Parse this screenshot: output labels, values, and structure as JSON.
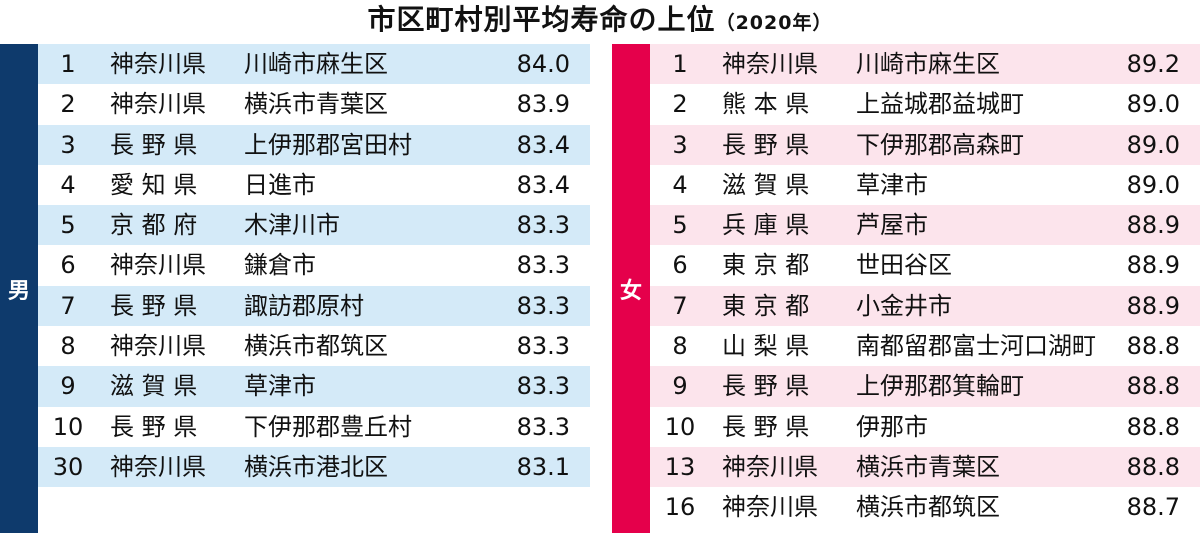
{
  "title": {
    "main": "市区町村別平均寿命の上位",
    "year": "（2020年）"
  },
  "male": {
    "label": "男",
    "rows": [
      {
        "rank": "1",
        "pref": "神奈川県",
        "city": "川崎市麻生区",
        "value": "84.0"
      },
      {
        "rank": "2",
        "pref": "神奈川県",
        "city": "横浜市青葉区",
        "value": "83.9"
      },
      {
        "rank": "3",
        "pref": "長 野 県",
        "city": "上伊那郡宮田村",
        "value": "83.4"
      },
      {
        "rank": "4",
        "pref": "愛 知 県",
        "city": "日進市",
        "value": "83.4"
      },
      {
        "rank": "5",
        "pref": "京 都 府",
        "city": "木津川市",
        "value": "83.3"
      },
      {
        "rank": "6",
        "pref": "神奈川県",
        "city": "鎌倉市",
        "value": "83.3"
      },
      {
        "rank": "7",
        "pref": "長 野 県",
        "city": "諏訪郡原村",
        "value": "83.3"
      },
      {
        "rank": "8",
        "pref": "神奈川県",
        "city": "横浜市都筑区",
        "value": "83.3"
      },
      {
        "rank": "9",
        "pref": "滋 賀 県",
        "city": "草津市",
        "value": "83.3"
      },
      {
        "rank": "10",
        "pref": "長 野 県",
        "city": "下伊那郡豊丘村",
        "value": "83.3"
      },
      {
        "rank": "30",
        "pref": "神奈川県",
        "city": "横浜市港北区",
        "value": "83.1"
      }
    ]
  },
  "female": {
    "label": "女",
    "rows": [
      {
        "rank": "1",
        "pref": "神奈川県",
        "city": "川崎市麻生区",
        "value": "89.2"
      },
      {
        "rank": "2",
        "pref": "熊 本 県",
        "city": "上益城郡益城町",
        "value": "89.0"
      },
      {
        "rank": "3",
        "pref": "長 野 県",
        "city": "下伊那郡高森町",
        "value": "89.0"
      },
      {
        "rank": "4",
        "pref": "滋 賀 県",
        "city": "草津市",
        "value": "89.0"
      },
      {
        "rank": "5",
        "pref": "兵 庫 県",
        "city": "芦屋市",
        "value": "88.9"
      },
      {
        "rank": "6",
        "pref": "東 京 都",
        "city": "世田谷区",
        "value": "88.9"
      },
      {
        "rank": "7",
        "pref": "東 京 都",
        "city": "小金井市",
        "value": "88.9"
      },
      {
        "rank": "8",
        "pref": "山 梨 県",
        "city": "南都留郡富士河口湖町",
        "value": "88.8"
      },
      {
        "rank": "9",
        "pref": "長 野 県",
        "city": "上伊那郡箕輪町",
        "value": "88.8"
      },
      {
        "rank": "10",
        "pref": "長 野 県",
        "city": "伊那市",
        "value": "88.8"
      },
      {
        "rank": "13",
        "pref": "神奈川県",
        "city": "横浜市青葉区",
        "value": "88.8"
      },
      {
        "rank": "16",
        "pref": "神奈川県",
        "city": "横浜市都筑区",
        "value": "88.7"
      }
    ]
  },
  "colors": {
    "male_band": "#0e3a6c",
    "male_row": "#d4eaf8",
    "female_band": "#e5004b",
    "female_row": "#fce4ec"
  }
}
